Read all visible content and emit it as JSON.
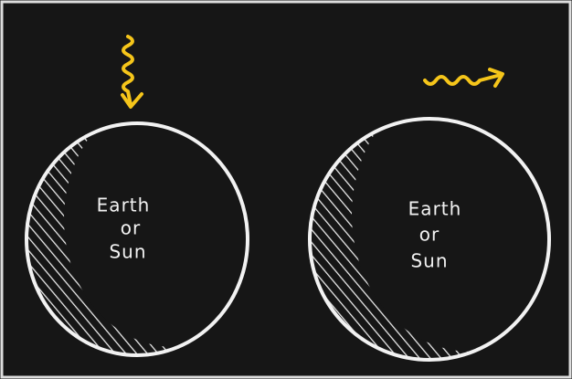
{
  "bodies": [
    {
      "label_lines": [
        "Earth",
        "or",
        "Sun"
      ]
    },
    {
      "label_lines": [
        "Earth",
        "or",
        "Sun"
      ]
    }
  ]
}
